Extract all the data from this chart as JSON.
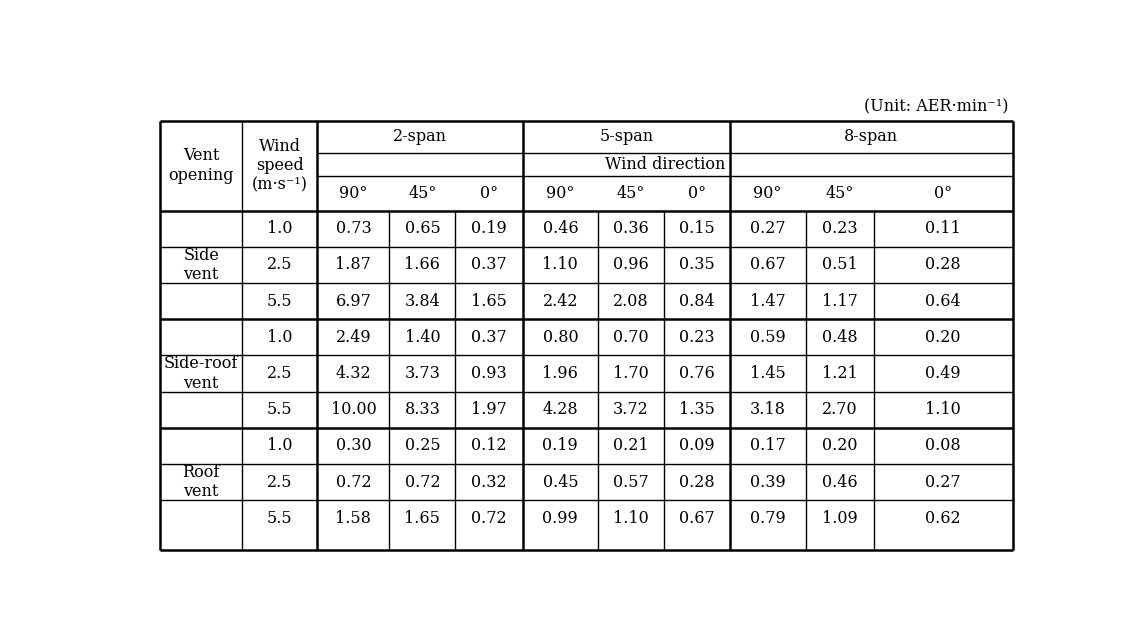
{
  "unit_label": "(Unit: AER·min⁻¹)",
  "vent_groups": [
    {
      "label": "Side\nvent",
      "rows": [
        [
          "1.0",
          "0.73",
          "0.65",
          "0.19",
          "0.46",
          "0.36",
          "0.15",
          "0.27",
          "0.23",
          "0.11"
        ],
        [
          "2.5",
          "1.87",
          "1.66",
          "0.37",
          "1.10",
          "0.96",
          "0.35",
          "0.67",
          "0.51",
          "0.28"
        ],
        [
          "5.5",
          "6.97",
          "3.84",
          "1.65",
          "2.42",
          "2.08",
          "0.84",
          "1.47",
          "1.17",
          "0.64"
        ]
      ]
    },
    {
      "label": "Side-roof\nvent",
      "rows": [
        [
          "1.0",
          "2.49",
          "1.40",
          "0.37",
          "0.80",
          "0.70",
          "0.23",
          "0.59",
          "0.48",
          "0.20"
        ],
        [
          "2.5",
          "4.32",
          "3.73",
          "0.93",
          "1.96",
          "1.70",
          "0.76",
          "1.45",
          "1.21",
          "0.49"
        ],
        [
          "5.5",
          "10.00",
          "8.33",
          "1.97",
          "4.28",
          "3.72",
          "1.35",
          "3.18",
          "2.70",
          "1.10"
        ]
      ]
    },
    {
      "label": "Roof\nvent",
      "rows": [
        [
          "1.0",
          "0.30",
          "0.25",
          "0.12",
          "0.19",
          "0.21",
          "0.09",
          "0.17",
          "0.20",
          "0.08"
        ],
        [
          "2.5",
          "0.72",
          "0.72",
          "0.32",
          "0.45",
          "0.57",
          "0.28",
          "0.39",
          "0.46",
          "0.27"
        ],
        [
          "5.5",
          "1.58",
          "1.65",
          "0.72",
          "0.99",
          "1.10",
          "0.67",
          "0.79",
          "1.09",
          "0.62"
        ]
      ]
    }
  ],
  "span_labels": [
    "2-span",
    "5-span",
    "8-span"
  ],
  "wind_direction_label": "Wind direction",
  "angles": [
    "90°",
    "45°",
    "0°",
    "90°",
    "45°",
    "0°",
    "90°",
    "45°",
    "0°"
  ],
  "vent_opening_label": "Vent\nopening",
  "wind_speed_label": "Wind\nspeed\n(m·s⁻¹)",
  "bg_color": "#ffffff",
  "text_color": "#000000",
  "line_color": "#000000",
  "font_size": 11.5
}
